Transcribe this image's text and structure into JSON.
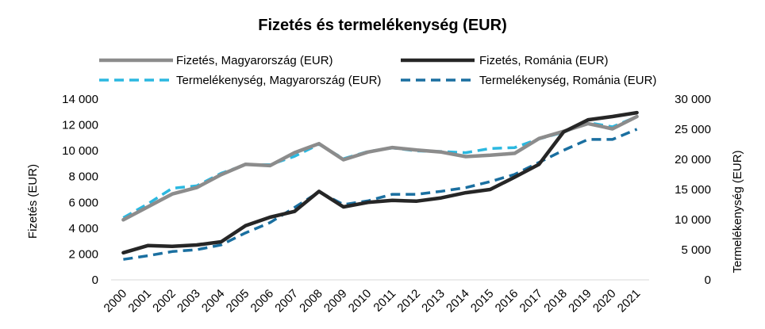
{
  "chart_data": {
    "type": "line",
    "title": "Fizetés és termelékenység (EUR)",
    "x": [
      "2000",
      "2001",
      "2002",
      "2003",
      "2004",
      "2005",
      "2006",
      "2007",
      "2008",
      "2009",
      "2010",
      "2011",
      "2012",
      "2013",
      "2014",
      "2015",
      "2016",
      "2017",
      "2018",
      "2019",
      "2020",
      "2021"
    ],
    "ylabel": "Fizetés (EUR)",
    "y2label": "Termelékenység (EUR)",
    "ylim": [
      0,
      14000
    ],
    "y2lim": [
      0,
      30000
    ],
    "yticks": [
      "0",
      "2 000",
      "4 000",
      "6 000",
      "8 000",
      "10 000",
      "12 000",
      "14 000"
    ],
    "y2ticks": [
      "0",
      "5 000",
      "10 000",
      "15 000",
      "20 000",
      "25 000",
      "30 000"
    ],
    "legend_position": "top",
    "series": [
      {
        "name": "Fizetés, Magyarország (EUR)",
        "axis": "left",
        "color": "#8c8c8c",
        "dash": "solid",
        "values": [
          4650,
          5650,
          6650,
          7150,
          8150,
          8950,
          8850,
          9850,
          10550,
          9300,
          9900,
          10250,
          10050,
          9900,
          9550,
          9650,
          9800,
          10950,
          11500,
          12100,
          11700,
          12650
        ]
      },
      {
        "name": "Fizetés, Románia (EUR)",
        "axis": "left",
        "color": "#262626",
        "dash": "solid",
        "values": [
          2100,
          2650,
          2600,
          2700,
          2950,
          4200,
          4850,
          5300,
          6850,
          5650,
          6000,
          6150,
          6100,
          6350,
          6750,
          7000,
          7950,
          8950,
          11450,
          12400,
          12650,
          12950
        ]
      },
      {
        "name": "Termelékenység, Magyarország (EUR)",
        "axis": "right",
        "color": "#2bb8e0",
        "dash": "dashed",
        "values": [
          10300,
          12600,
          15200,
          15600,
          17700,
          19100,
          19100,
          20500,
          22500,
          20100,
          21300,
          21900,
          21400,
          21300,
          21100,
          21800,
          21950,
          23400,
          24500,
          26100,
          25400,
          27100
        ]
      },
      {
        "name": "Termelékenység, Románia (EUR)",
        "axis": "right",
        "color": "#1a6fa0",
        "dash": "dashed",
        "values": [
          3400,
          4000,
          4700,
          5000,
          5800,
          7800,
          9500,
          12000,
          14600,
          12500,
          13100,
          14200,
          14200,
          14700,
          15300,
          16300,
          17500,
          19500,
          21500,
          23300,
          23300,
          25000
        ]
      }
    ]
  }
}
